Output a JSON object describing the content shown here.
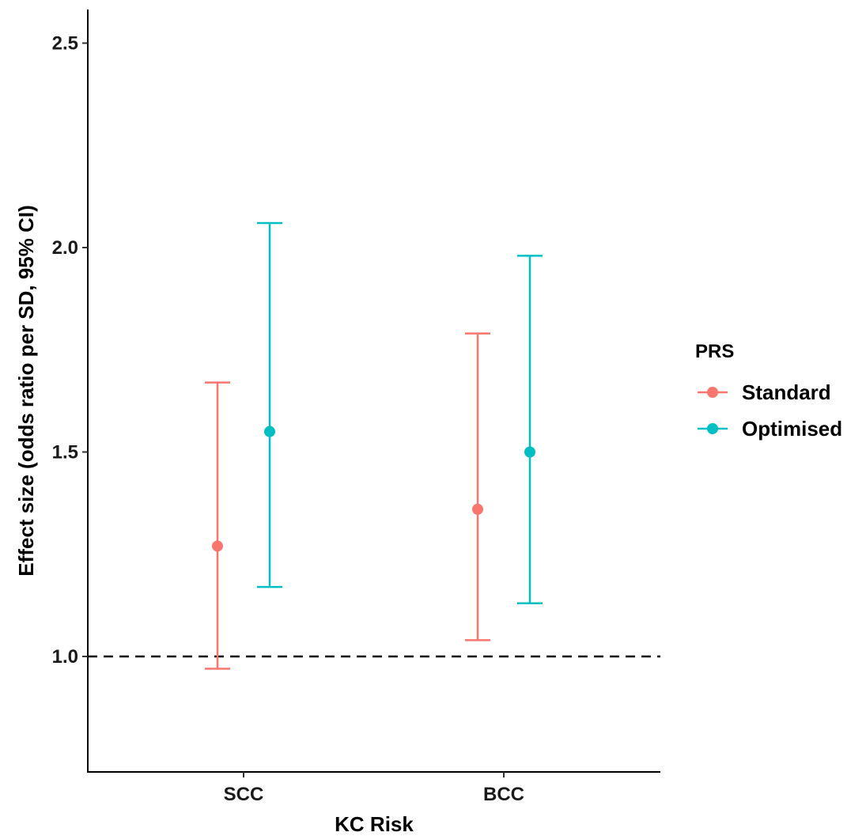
{
  "chart_data": {
    "type": "errorbar",
    "title": "",
    "xlabel": "KC Risk",
    "ylabel": "Effect size (odds ratio per SD, 95% CI)",
    "categories": [
      "SCC",
      "BCC"
    ],
    "ylim": [
      0.72,
      2.6
    ],
    "yticks": [
      1.0,
      1.5,
      2.0,
      2.5
    ],
    "ytick_labels": [
      "1.0",
      "1.5",
      "2.0",
      "2.5"
    ],
    "reference_line": {
      "y": 1.0,
      "style": "dashed",
      "color": "#000000"
    },
    "grid": false,
    "legend": {
      "title": "PRS",
      "position": "right"
    },
    "series": [
      {
        "name": "Standard",
        "color": "#F8766D",
        "values": [
          1.27,
          1.36
        ],
        "lower": [
          0.97,
          1.04
        ],
        "upper": [
          1.67,
          1.79
        ]
      },
      {
        "name": "Optimised",
        "color": "#00BFC4",
        "values": [
          1.55,
          1.5
        ],
        "lower": [
          1.17,
          1.13
        ],
        "upper": [
          2.06,
          1.98
        ]
      }
    ]
  }
}
